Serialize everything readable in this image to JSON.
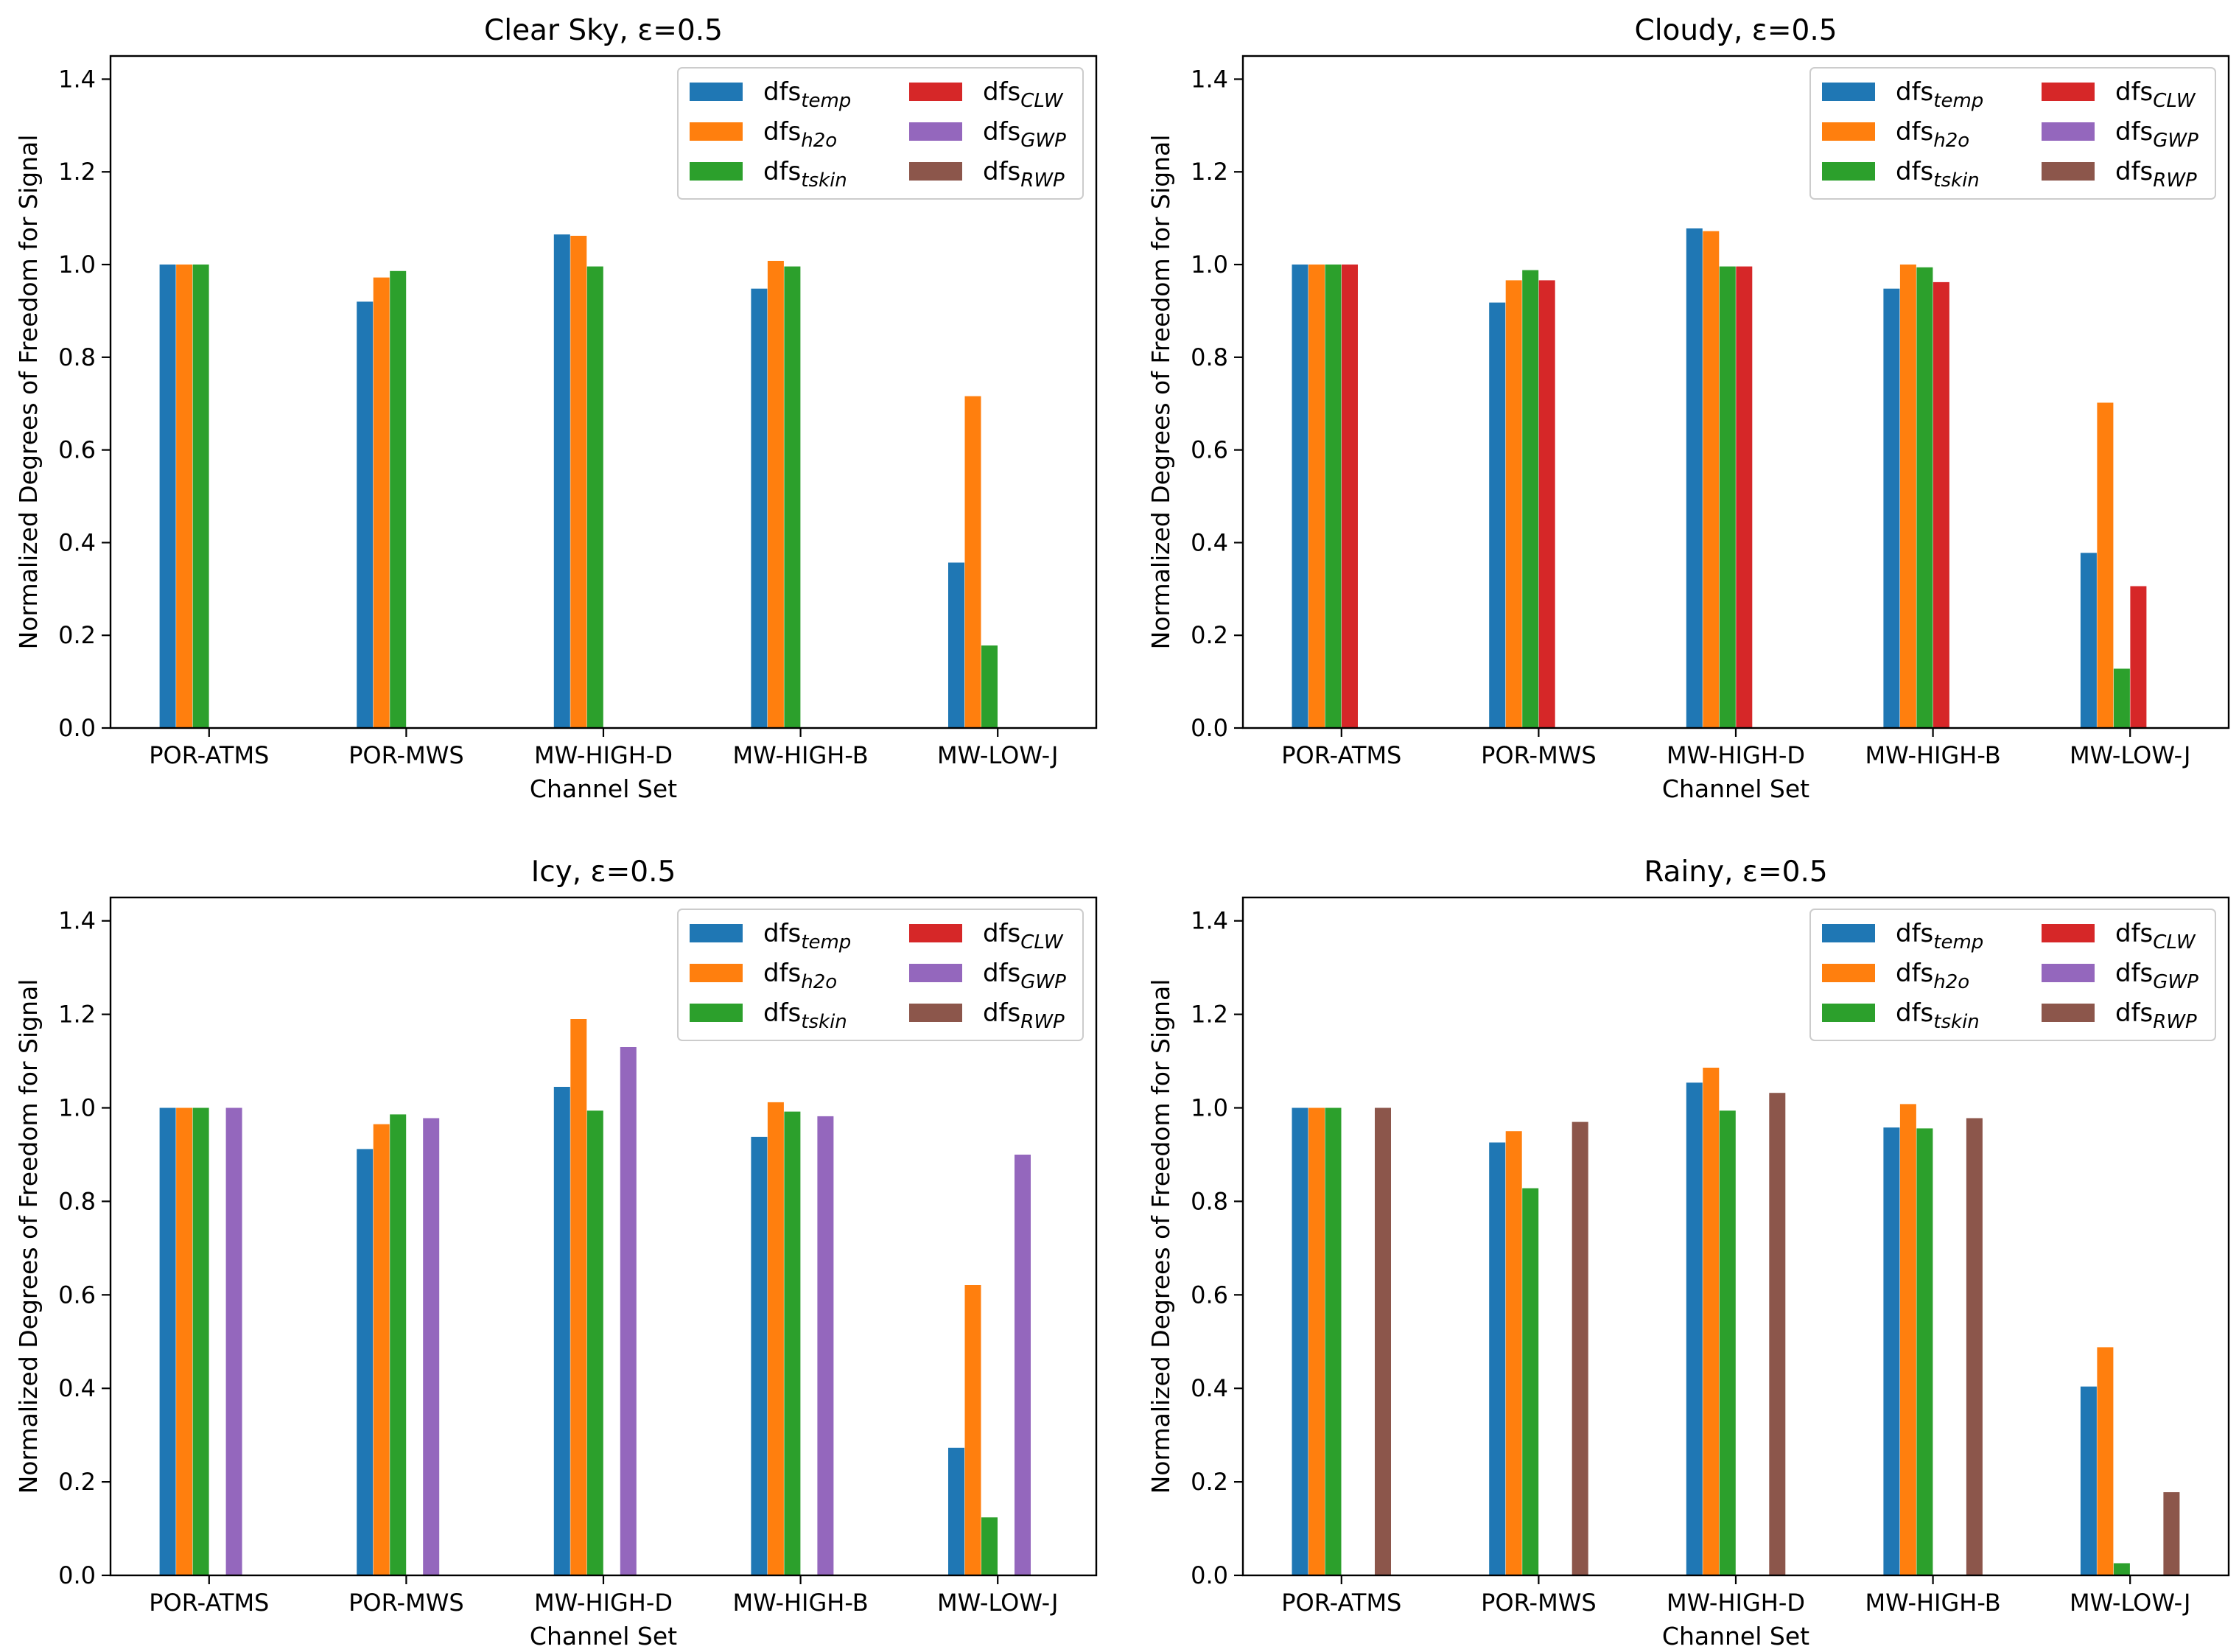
{
  "colors": {
    "dfs_temp": "#1f77b4",
    "dfs_h2o": "#ff7f0e",
    "dfs_tskin": "#2ca02c",
    "dfs_CLW": "#d62728",
    "dfs_GWP": "#9467bd",
    "dfs_RWP": "#8c564b"
  },
  "legend": [
    {
      "key": "dfs_temp",
      "base": "dfs",
      "sub": "temp"
    },
    {
      "key": "dfs_h2o",
      "base": "dfs",
      "sub": "h2o"
    },
    {
      "key": "dfs_tskin",
      "base": "dfs",
      "sub": "tskin"
    },
    {
      "key": "dfs_CLW",
      "base": "dfs",
      "sub": "CLW"
    },
    {
      "key": "dfs_GWP",
      "base": "dfs",
      "sub": "GWP"
    },
    {
      "key": "dfs_RWP",
      "base": "dfs",
      "sub": "RWP"
    }
  ],
  "chart_data": [
    {
      "type": "bar",
      "title": "Clear Sky, ε=0.5",
      "xlabel": "Channel Set",
      "ylabel": "Normalized Degrees of Freedom for Signal",
      "ylim": [
        0,
        1.45
      ],
      "yticks": [
        "0.0",
        "0.2",
        "0.4",
        "0.6",
        "0.8",
        "1.0",
        "1.2",
        "1.4"
      ],
      "legend_position": "upper right",
      "categories": [
        "POR-ATMS",
        "POR-MWS",
        "MW-HIGH-D",
        "MW-HIGH-B",
        "MW-LOW-J"
      ],
      "series": [
        {
          "name": "dfs_temp",
          "values": [
            1.0,
            0.92,
            1.065,
            0.948,
            0.357
          ]
        },
        {
          "name": "dfs_h2o",
          "values": [
            1.0,
            0.972,
            1.062,
            1.008,
            0.716
          ]
        },
        {
          "name": "dfs_tskin",
          "values": [
            1.0,
            0.986,
            0.996,
            0.996,
            0.178
          ]
        },
        {
          "name": "dfs_CLW",
          "values": [
            null,
            null,
            null,
            null,
            null
          ]
        },
        {
          "name": "dfs_GWP",
          "values": [
            null,
            null,
            null,
            null,
            null
          ]
        },
        {
          "name": "dfs_RWP",
          "values": [
            null,
            null,
            null,
            null,
            null
          ]
        }
      ]
    },
    {
      "type": "bar",
      "title": "Cloudy, ε=0.5",
      "xlabel": "Channel Set",
      "ylabel": "Normalized Degrees of Freedom for Signal",
      "ylim": [
        0,
        1.45
      ],
      "yticks": [
        "0.0",
        "0.2",
        "0.4",
        "0.6",
        "0.8",
        "1.0",
        "1.2",
        "1.4"
      ],
      "legend_position": "upper right",
      "categories": [
        "POR-ATMS",
        "POR-MWS",
        "MW-HIGH-D",
        "MW-HIGH-B",
        "MW-LOW-J"
      ],
      "series": [
        {
          "name": "dfs_temp",
          "values": [
            1.0,
            0.918,
            1.078,
            0.948,
            0.378
          ]
        },
        {
          "name": "dfs_h2o",
          "values": [
            1.0,
            0.966,
            1.072,
            1.0,
            0.702
          ]
        },
        {
          "name": "dfs_tskin",
          "values": [
            1.0,
            0.988,
            0.996,
            0.994,
            0.128
          ]
        },
        {
          "name": "dfs_CLW",
          "values": [
            1.0,
            0.966,
            0.996,
            0.962,
            0.306
          ]
        },
        {
          "name": "dfs_GWP",
          "values": [
            null,
            null,
            null,
            null,
            null
          ]
        },
        {
          "name": "dfs_RWP",
          "values": [
            null,
            null,
            null,
            null,
            null
          ]
        }
      ]
    },
    {
      "type": "bar",
      "title": "Icy, ε=0.5",
      "xlabel": "Channel Set",
      "ylabel": "Normalized Degrees of Freedom for Signal",
      "ylim": [
        0,
        1.45
      ],
      "yticks": [
        "0.0",
        "0.2",
        "0.4",
        "0.6",
        "0.8",
        "1.0",
        "1.2",
        "1.4"
      ],
      "legend_position": "upper right",
      "categories": [
        "POR-ATMS",
        "POR-MWS",
        "MW-HIGH-D",
        "MW-HIGH-B",
        "MW-LOW-J"
      ],
      "series": [
        {
          "name": "dfs_temp",
          "values": [
            1.0,
            0.912,
            1.045,
            0.938,
            0.273
          ]
        },
        {
          "name": "dfs_h2o",
          "values": [
            1.0,
            0.965,
            1.19,
            1.012,
            0.621
          ]
        },
        {
          "name": "dfs_tskin",
          "values": [
            1.0,
            0.986,
            0.994,
            0.992,
            0.124
          ]
        },
        {
          "name": "dfs_CLW",
          "values": [
            null,
            null,
            null,
            null,
            null
          ]
        },
        {
          "name": "dfs_GWP",
          "values": [
            1.0,
            0.978,
            1.13,
            0.982,
            0.9
          ]
        },
        {
          "name": "dfs_RWP",
          "values": [
            null,
            null,
            null,
            null,
            null
          ]
        }
      ]
    },
    {
      "type": "bar",
      "title": "Rainy, ε=0.5",
      "xlabel": "Channel Set",
      "ylabel": "Normalized Degrees of Freedom for Signal",
      "ylim": [
        0,
        1.45
      ],
      "yticks": [
        "0.0",
        "0.2",
        "0.4",
        "0.6",
        "0.8",
        "1.0",
        "1.2",
        "1.4"
      ],
      "legend_position": "upper right",
      "categories": [
        "POR-ATMS",
        "POR-MWS",
        "MW-HIGH-D",
        "MW-HIGH-B",
        "MW-LOW-J"
      ],
      "series": [
        {
          "name": "dfs_temp",
          "values": [
            1.0,
            0.926,
            1.054,
            0.958,
            0.404
          ]
        },
        {
          "name": "dfs_h2o",
          "values": [
            1.0,
            0.95,
            1.086,
            1.008,
            0.488
          ]
        },
        {
          "name": "dfs_tskin",
          "values": [
            1.0,
            0.828,
            0.994,
            0.956,
            0.026
          ]
        },
        {
          "name": "dfs_CLW",
          "values": [
            null,
            null,
            null,
            null,
            null
          ]
        },
        {
          "name": "dfs_GWP",
          "values": [
            null,
            null,
            null,
            null,
            null
          ]
        },
        {
          "name": "dfs_RWP",
          "values": [
            1.0,
            0.97,
            1.032,
            0.978,
            0.178
          ]
        }
      ]
    }
  ]
}
